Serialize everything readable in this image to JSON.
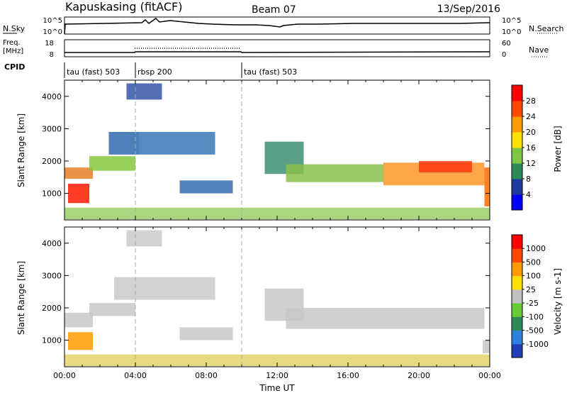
{
  "header": {
    "station": "Kapuskasing (fitACF)",
    "beam": "Beam 07",
    "date": "13/Sep/2016"
  },
  "panel_labels": {
    "nsky": "N.Sky",
    "nsearch": "N.Search",
    "freq_line1": "Freq.",
    "freq_line2": "[MHz]",
    "nave": "Nave",
    "cpid": "CPID"
  },
  "small_axes": {
    "nsky_ticks": [
      "10^5",
      "10^0"
    ],
    "nsearch_ticks": [
      "10^5",
      "10^0"
    ],
    "freq_ticks": [
      "18",
      "8"
    ],
    "nave_ticks": [
      "60",
      "0"
    ]
  },
  "cpid_segments": [
    {
      "label": "tau (fast) 503",
      "start_h": 0
    },
    {
      "label": "rbsp 200",
      "start_h": 4
    },
    {
      "label": "tau (fast) 503",
      "start_h": 10
    }
  ],
  "chart_data": [
    {
      "type": "heatmap",
      "title": "Power",
      "ylabel": "Slant Range [km]",
      "xlabel": "",
      "ylim": [
        180,
        4500
      ],
      "xlim": [
        0,
        24
      ],
      "yticks": [
        1000,
        2000,
        3000,
        4000
      ],
      "colorbar_label": "Power [dB]",
      "colorbar_ticks": [
        "4",
        "8",
        "12",
        "16",
        "20",
        "24",
        "28"
      ],
      "colorbar_colors": [
        "#0000ff",
        "#1f3a9e",
        "#2c8b57",
        "#7fc645",
        "#ffe000",
        "#ff9a00",
        "#ff4a00",
        "#ff0000"
      ],
      "bands": [
        {
          "t0": 0.0,
          "t1": 1.6,
          "r0": 1450,
          "r1": 1800,
          "color": "#e87f25"
        },
        {
          "t0": 0.2,
          "t1": 1.4,
          "r0": 700,
          "r1": 1300,
          "color": "#ff1a00"
        },
        {
          "t0": 1.4,
          "t1": 4.0,
          "r0": 1700,
          "r1": 2150,
          "color": "#86c840"
        },
        {
          "t0": 2.5,
          "t1": 4.2,
          "r0": 2200,
          "r1": 2900,
          "color": "#2f6bb0"
        },
        {
          "t0": 4.2,
          "t1": 8.5,
          "r0": 2200,
          "r1": 2900,
          "color": "#3a78b9"
        },
        {
          "t0": 3.5,
          "t1": 5.5,
          "r0": 3900,
          "r1": 4400,
          "color": "#3456a8"
        },
        {
          "t0": 6.5,
          "t1": 9.5,
          "r0": 1000,
          "r1": 1400,
          "color": "#3a6fb4"
        },
        {
          "t0": 0.0,
          "t1": 24.0,
          "r0": 200,
          "r1": 560,
          "color": "#9ccf6a"
        },
        {
          "t0": 11.3,
          "t1": 13.5,
          "r0": 1600,
          "r1": 2600,
          "color": "#3d8e72"
        },
        {
          "t0": 12.5,
          "t1": 18.0,
          "r0": 1350,
          "r1": 1900,
          "color": "#8ac048"
        },
        {
          "t0": 18.0,
          "t1": 23.7,
          "r0": 1250,
          "r1": 1950,
          "color": "#ff9828"
        },
        {
          "t0": 20.0,
          "t1": 23.0,
          "r0": 1650,
          "r1": 2000,
          "color": "#ff3a10"
        },
        {
          "t0": 23.7,
          "t1": 24.0,
          "r0": 600,
          "r1": 1800,
          "color": "#ff6a00"
        }
      ]
    },
    {
      "type": "heatmap",
      "title": "Velocity",
      "ylabel": "Slant Range [km]",
      "xlabel": "Time UT",
      "ylim": [
        180,
        4500
      ],
      "xlim": [
        0,
        24
      ],
      "yticks": [
        1000,
        2000,
        3000,
        4000
      ],
      "xticks": [
        "00:00",
        "04:00",
        "08:00",
        "12:00",
        "16:00",
        "20:00",
        "00:00"
      ],
      "colorbar_label": "Velocity [m s-1]",
      "colorbar_ticks": [
        "1000",
        "500",
        "100",
        "25",
        "-25",
        "-100",
        "-500",
        "-1000"
      ],
      "colorbar_colors": [
        "#1e3fb8",
        "#2f7fe0",
        "#2e8b57",
        "#66cc33",
        "#c0c0c0",
        "#ffe000",
        "#ff9a00",
        "#ff4a00",
        "#ff0000"
      ],
      "bands": [
        {
          "t0": 0.0,
          "t1": 1.6,
          "r0": 1400,
          "r1": 1850,
          "color": "#c8c8c8"
        },
        {
          "t0": 0.2,
          "t1": 1.6,
          "r0": 700,
          "r1": 1250,
          "color": "#ff9a00"
        },
        {
          "t0": 1.4,
          "t1": 4.0,
          "r0": 1750,
          "r1": 2150,
          "color": "#c8c8c8"
        },
        {
          "t0": 2.8,
          "t1": 8.5,
          "r0": 2250,
          "r1": 2950,
          "color": "#cacaca"
        },
        {
          "t0": 3.5,
          "t1": 5.5,
          "r0": 3900,
          "r1": 4400,
          "color": "#cacaca"
        },
        {
          "t0": 6.5,
          "t1": 9.5,
          "r0": 1000,
          "r1": 1400,
          "color": "#c8c8c8"
        },
        {
          "t0": 0.0,
          "t1": 24.0,
          "r0": 200,
          "r1": 560,
          "color": "#e4d36a"
        },
        {
          "t0": 11.3,
          "t1": 13.5,
          "r0": 1600,
          "r1": 2600,
          "color": "#c8c8c8"
        },
        {
          "t0": 12.5,
          "t1": 23.7,
          "r0": 1350,
          "r1": 2000,
          "color": "#c8c8c8"
        },
        {
          "t0": 23.6,
          "t1": 24.0,
          "r0": 600,
          "r1": 1000,
          "color": "#c8c8c8"
        }
      ]
    }
  ]
}
